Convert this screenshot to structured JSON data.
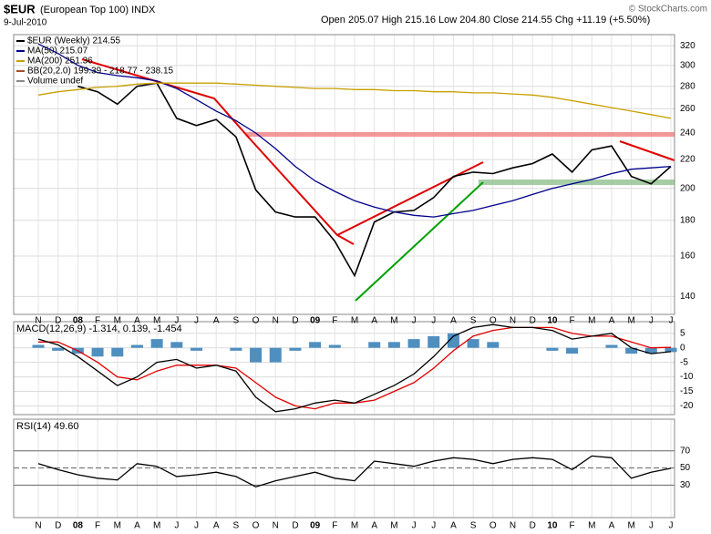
{
  "chart_data": [
    {
      "type": "line",
      "title": "$EUR",
      "subtitle": "(European Top 100) INDX",
      "date": "9-Jul-2010",
      "quote": "Open 205.07  High 215.16  Low 204.80  Close 214.55  Chg +11.19 (+5.50%)",
      "credit": "© StockCharts.com",
      "categories": [
        "N",
        "D",
        "08",
        "F",
        "M",
        "A",
        "M",
        "J",
        "J",
        "A",
        "S",
        "O",
        "N",
        "D",
        "09",
        "F",
        "M",
        "A",
        "M",
        "J",
        "J",
        "A",
        "S",
        "O",
        "N",
        "D",
        "10",
        "F",
        "M",
        "A",
        "M",
        "J",
        "J"
      ],
      "log": true,
      "ylim": [
        132,
        332
      ],
      "yticks": [
        140,
        160,
        180,
        200,
        220,
        240,
        260,
        280,
        300,
        320
      ],
      "grid": true,
      "series": [
        {
          "name": "$EUR (Weekly) 214.55",
          "color": "#000000",
          "values": [
            null,
            null,
            280,
            275,
            264,
            280,
            283,
            252,
            246,
            251,
            237,
            199,
            185,
            182,
            182,
            168,
            150,
            179,
            185,
            186,
            194,
            208,
            211,
            210,
            214,
            217,
            224,
            211,
            227,
            230,
            208,
            203,
            215
          ]
        },
        {
          "name": "MA(50) 215.07",
          "color": "#00008b",
          "values": [
            322,
            312,
            300,
            293,
            290,
            288,
            285,
            278,
            268,
            258,
            250,
            240,
            228,
            215,
            205,
            198,
            192,
            188,
            185,
            183,
            182,
            184,
            186,
            189,
            192,
            196,
            200,
            203,
            206,
            210,
            213,
            214,
            215
          ]
        },
        {
          "name": "MA(200) 251.36",
          "color": "#c8a000",
          "values": [
            272,
            275,
            277,
            279,
            280,
            282,
            283,
            283,
            283,
            283,
            282,
            281,
            280,
            279,
            278,
            278,
            277,
            277,
            276,
            276,
            275,
            275,
            274,
            274,
            273,
            272,
            270,
            267,
            264,
            261,
            258,
            255,
            252
          ]
        }
      ],
      "notes": [
        "BB(20,2.0) 199.39 - 218.77 - 238.15",
        "Volume undef"
      ]
    },
    {
      "type": "line",
      "title": "MACD(12,26,9) -1.314, 0.139, -1.454",
      "ylim": [
        -23,
        9
      ],
      "yticks": [
        5,
        0,
        -5,
        -10,
        -15,
        -20
      ],
      "grid": true,
      "series": [
        {
          "type": "bar",
          "color": "#4f8fc0",
          "values": [
            1,
            -1,
            -2,
            -3,
            -3,
            1,
            3,
            2,
            -1,
            0,
            -1,
            -5,
            -5,
            -1,
            2,
            1,
            0,
            2,
            2,
            3,
            4,
            5,
            3,
            2,
            0,
            0,
            -1,
            -2,
            0,
            1,
            -2,
            -2,
            -1.454
          ]
        },
        {
          "type": "line",
          "color": "#e00000",
          "values": [
            2,
            2,
            -1,
            -5,
            -10,
            -11,
            -8,
            -6,
            -6,
            -6,
            -7,
            -12,
            -17,
            -20,
            -21,
            -19,
            -19,
            -18,
            -15,
            -12,
            -7,
            -1,
            4,
            6,
            7,
            7,
            7,
            5,
            4,
            4,
            2,
            0,
            0.139
          ]
        },
        {
          "type": "line",
          "color": "#000000",
          "values": [
            3,
            1,
            -3,
            -8,
            -13,
            -10,
            -5,
            -4,
            -7,
            -6,
            -8,
            -17,
            -22,
            -21,
            -19,
            -18,
            -19,
            -16,
            -13,
            -9,
            -3,
            4,
            7,
            8,
            7,
            7,
            6,
            3,
            4,
            5,
            0,
            -2,
            -1.314
          ]
        }
      ]
    },
    {
      "type": "line",
      "title": "RSI(14) 49.60",
      "categories": [
        "N",
        "D",
        "08",
        "F",
        "M",
        "A",
        "M",
        "J",
        "J",
        "A",
        "S",
        "O",
        "N",
        "D",
        "09",
        "F",
        "M",
        "A",
        "M",
        "J",
        "J",
        "A",
        "S",
        "O",
        "N",
        "D",
        "10",
        "F",
        "M",
        "A",
        "M",
        "J",
        "J"
      ],
      "ylim": [
        -8,
        107
      ],
      "yticks": [
        70,
        50,
        30
      ],
      "grid": true,
      "series": [
        {
          "color": "#000000",
          "values": [
            55,
            48,
            42,
            38,
            36,
            55,
            52,
            40,
            42,
            45,
            40,
            28,
            35,
            40,
            45,
            38,
            35,
            58,
            55,
            52,
            58,
            62,
            60,
            55,
            60,
            62,
            60,
            48,
            64,
            62,
            38,
            45,
            49.6
          ]
        }
      ]
    }
  ]
}
